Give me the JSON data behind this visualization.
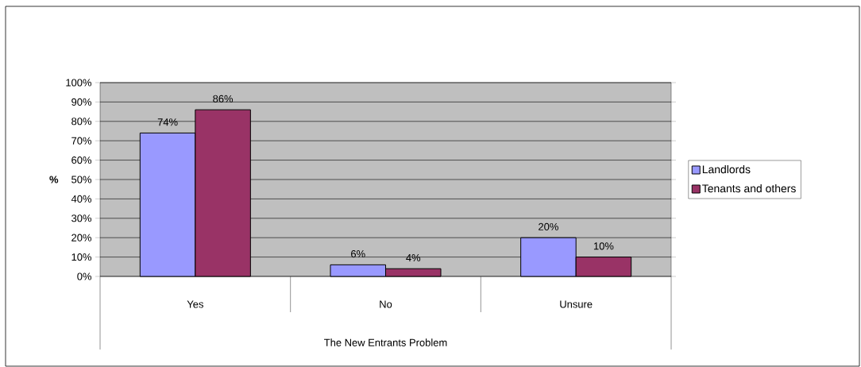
{
  "chart_data": {
    "type": "bar",
    "xlabel": "The New Entrants Problem",
    "ylabel": "%",
    "categories": [
      "Yes",
      "No",
      "Unsure"
    ],
    "series": [
      {
        "name": "Landlords",
        "color": "#9999ff",
        "values": [
          74,
          6,
          20
        ],
        "value_labels": [
          "74%",
          "6%",
          "20%"
        ]
      },
      {
        "name": "Tenants and others",
        "color": "#993366",
        "values": [
          86,
          4,
          10
        ],
        "value_labels": [
          "86%",
          "4%",
          "10%"
        ]
      }
    ],
    "ylim": [
      0,
      100
    ],
    "yticks": [
      {
        "value": 0,
        "label": "0%"
      },
      {
        "value": 10,
        "label": "10%"
      },
      {
        "value": 20,
        "label": "20%"
      },
      {
        "value": 30,
        "label": "30%"
      },
      {
        "value": 40,
        "label": "40%"
      },
      {
        "value": 50,
        "label": "50%"
      },
      {
        "value": 60,
        "label": "60%"
      },
      {
        "value": 70,
        "label": "70%"
      },
      {
        "value": 80,
        "label": "80%"
      },
      {
        "value": 90,
        "label": "90%"
      },
      {
        "value": 100,
        "label": "100%"
      }
    ],
    "grid": "y",
    "legend": "right"
  }
}
